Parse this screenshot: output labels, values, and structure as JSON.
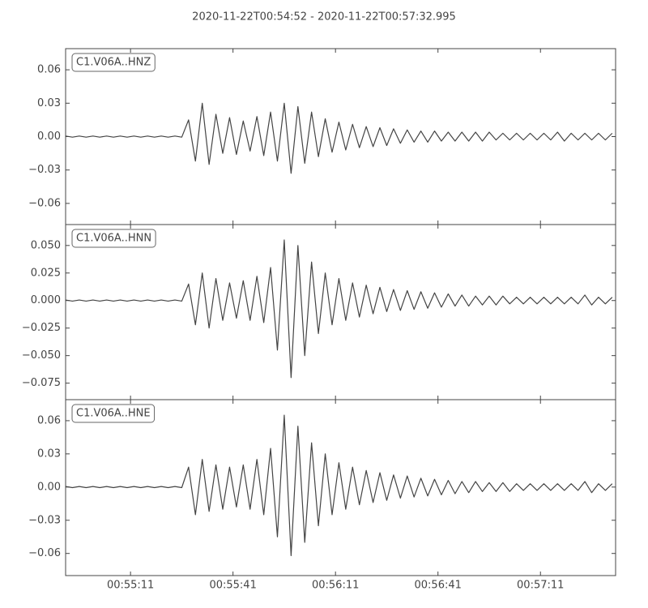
{
  "chart_data": {
    "type": "line",
    "title": "2020-11-22T00:54:52  -  2020-11-22T00:57:32.995",
    "xlim": [
      "00:54:52",
      "00:57:32.995"
    ],
    "xticks": [
      "00:55:11",
      "00:55:41",
      "00:56:11",
      "00:56:41",
      "00:57:11"
    ],
    "x": [
      "00:54:52",
      "00:54:54",
      "00:54:56",
      "00:54:58",
      "00:55:00",
      "00:55:02",
      "00:55:04",
      "00:55:06",
      "00:55:08",
      "00:55:10",
      "00:55:12",
      "00:55:14",
      "00:55:16",
      "00:55:18",
      "00:55:20",
      "00:55:22",
      "00:55:24",
      "00:55:26",
      "00:55:28",
      "00:55:30",
      "00:55:32",
      "00:55:34",
      "00:55:36",
      "00:55:38",
      "00:55:40",
      "00:55:42",
      "00:55:44",
      "00:55:46",
      "00:55:48",
      "00:55:50",
      "00:55:52",
      "00:55:54",
      "00:55:56",
      "00:55:58",
      "00:56:00",
      "00:56:02",
      "00:56:04",
      "00:56:06",
      "00:56:08",
      "00:56:10",
      "00:56:12",
      "00:56:14",
      "00:56:16",
      "00:56:18",
      "00:56:20",
      "00:56:22",
      "00:56:24",
      "00:56:26",
      "00:56:28",
      "00:56:30",
      "00:56:32",
      "00:56:34",
      "00:56:36",
      "00:56:38",
      "00:56:40",
      "00:56:42",
      "00:56:44",
      "00:56:46",
      "00:56:48",
      "00:56:50",
      "00:56:52",
      "00:56:54",
      "00:56:56",
      "00:56:58",
      "00:57:00",
      "00:57:02",
      "00:57:04",
      "00:57:06",
      "00:57:08",
      "00:57:10",
      "00:57:12",
      "00:57:14",
      "00:57:16",
      "00:57:18",
      "00:57:20",
      "00:57:22",
      "00:57:24",
      "00:57:26",
      "00:57:28",
      "00:57:30",
      "00:57:32"
    ],
    "series": [
      {
        "name": "C1.V06A..HNZ",
        "color": "#444444",
        "ylim": [
          -0.079,
          0.079
        ],
        "yticks": [
          0.06,
          0.03,
          {
            "value": 0,
            "label": "0.00"
          },
          {
            "value": -0.03,
            "label": "−0.03"
          },
          {
            "value": -0.06,
            "label": "−0.06"
          }
        ],
        "values": [
          0.0005,
          -0.0005,
          0.0005,
          -0.0005,
          0.0005,
          -0.0005,
          0.0005,
          -0.0005,
          0.0005,
          -0.0005,
          0.0005,
          -0.0005,
          0.0005,
          -0.0005,
          0.0005,
          -0.0005,
          0.0005,
          -0.0005,
          0.015,
          -0.022,
          0.03,
          -0.025,
          0.02,
          -0.015,
          0.017,
          -0.016,
          0.014,
          -0.013,
          0.018,
          -0.017,
          0.022,
          -0.022,
          0.03,
          -0.033,
          0.027,
          -0.024,
          0.022,
          -0.018,
          0.016,
          -0.014,
          0.013,
          -0.012,
          0.011,
          -0.01,
          0.009,
          -0.009,
          0.008,
          -0.008,
          0.007,
          -0.006,
          0.006,
          -0.005,
          0.005,
          -0.005,
          0.005,
          -0.004,
          0.004,
          -0.004,
          0.004,
          -0.004,
          0.004,
          -0.004,
          0.004,
          -0.003,
          0.003,
          -0.003,
          0.003,
          -0.003,
          0.003,
          -0.003,
          0.003,
          -0.003,
          0.004,
          -0.004,
          0.003,
          -0.003,
          0.003,
          -0.003,
          0.003,
          -0.003,
          0.003
        ]
      },
      {
        "name": "C1.V06A..HNN",
        "color": "#444444",
        "ylim": [
          -0.09,
          0.069
        ],
        "yticks": [
          {
            "value": 0.05,
            "label": "0.050"
          },
          0.025,
          {
            "value": 0,
            "label": "0.000"
          },
          {
            "value": -0.025,
            "label": "−0.025"
          },
          {
            "value": -0.05,
            "label": "−0.050"
          },
          {
            "value": -0.075,
            "label": "−0.075"
          }
        ],
        "values": [
          0.0005,
          -0.0005,
          0.0005,
          -0.0005,
          0.0005,
          -0.0005,
          0.0005,
          -0.0005,
          0.0005,
          -0.0005,
          0.0005,
          -0.0005,
          0.0005,
          -0.0005,
          0.0005,
          -0.0005,
          0.0005,
          -0.0005,
          0.015,
          -0.022,
          0.025,
          -0.025,
          0.02,
          -0.018,
          0.016,
          -0.016,
          0.018,
          -0.018,
          0.022,
          -0.02,
          0.03,
          -0.045,
          0.055,
          -0.07,
          0.05,
          -0.05,
          0.035,
          -0.03,
          0.025,
          -0.022,
          0.02,
          -0.018,
          0.016,
          -0.015,
          0.014,
          -0.012,
          0.012,
          -0.01,
          0.01,
          -0.009,
          0.009,
          -0.008,
          0.008,
          -0.007,
          0.007,
          -0.006,
          0.006,
          -0.005,
          0.005,
          -0.005,
          0.004,
          -0.004,
          0.004,
          -0.004,
          0.004,
          -0.003,
          0.003,
          -0.003,
          0.003,
          -0.003,
          0.003,
          -0.003,
          0.003,
          -0.003,
          0.003,
          -0.003,
          0.005,
          -0.004,
          0.003,
          -0.003,
          0.003
        ]
      },
      {
        "name": "C1.V06A..HNE",
        "color": "#444444",
        "ylim": [
          -0.08,
          0.079
        ],
        "yticks": [
          0.06,
          0.03,
          {
            "value": 0,
            "label": "0.00"
          },
          {
            "value": -0.03,
            "label": "−0.03"
          },
          {
            "value": -0.06,
            "label": "−0.06"
          }
        ],
        "values": [
          0.0005,
          -0.0005,
          0.0005,
          -0.0005,
          0.0005,
          -0.0005,
          0.0005,
          -0.0005,
          0.0005,
          -0.0005,
          0.0005,
          -0.0005,
          0.0005,
          -0.0005,
          0.0005,
          -0.0005,
          0.0005,
          -0.0005,
          0.018,
          -0.025,
          0.025,
          -0.022,
          0.02,
          -0.02,
          0.018,
          -0.018,
          0.02,
          -0.02,
          0.025,
          -0.025,
          0.035,
          -0.045,
          0.065,
          -0.062,
          0.055,
          -0.05,
          0.04,
          -0.035,
          0.03,
          -0.025,
          0.022,
          -0.02,
          0.018,
          -0.016,
          0.015,
          -0.014,
          0.013,
          -0.012,
          0.011,
          -0.01,
          0.01,
          -0.009,
          0.008,
          -0.008,
          0.007,
          -0.007,
          0.006,
          -0.006,
          0.005,
          -0.005,
          0.005,
          -0.004,
          0.004,
          -0.004,
          0.004,
          -0.004,
          0.003,
          -0.003,
          0.003,
          -0.003,
          0.003,
          -0.003,
          0.003,
          -0.003,
          0.003,
          -0.003,
          0.005,
          -0.005,
          0.003,
          -0.003,
          0.003
        ]
      }
    ]
  }
}
